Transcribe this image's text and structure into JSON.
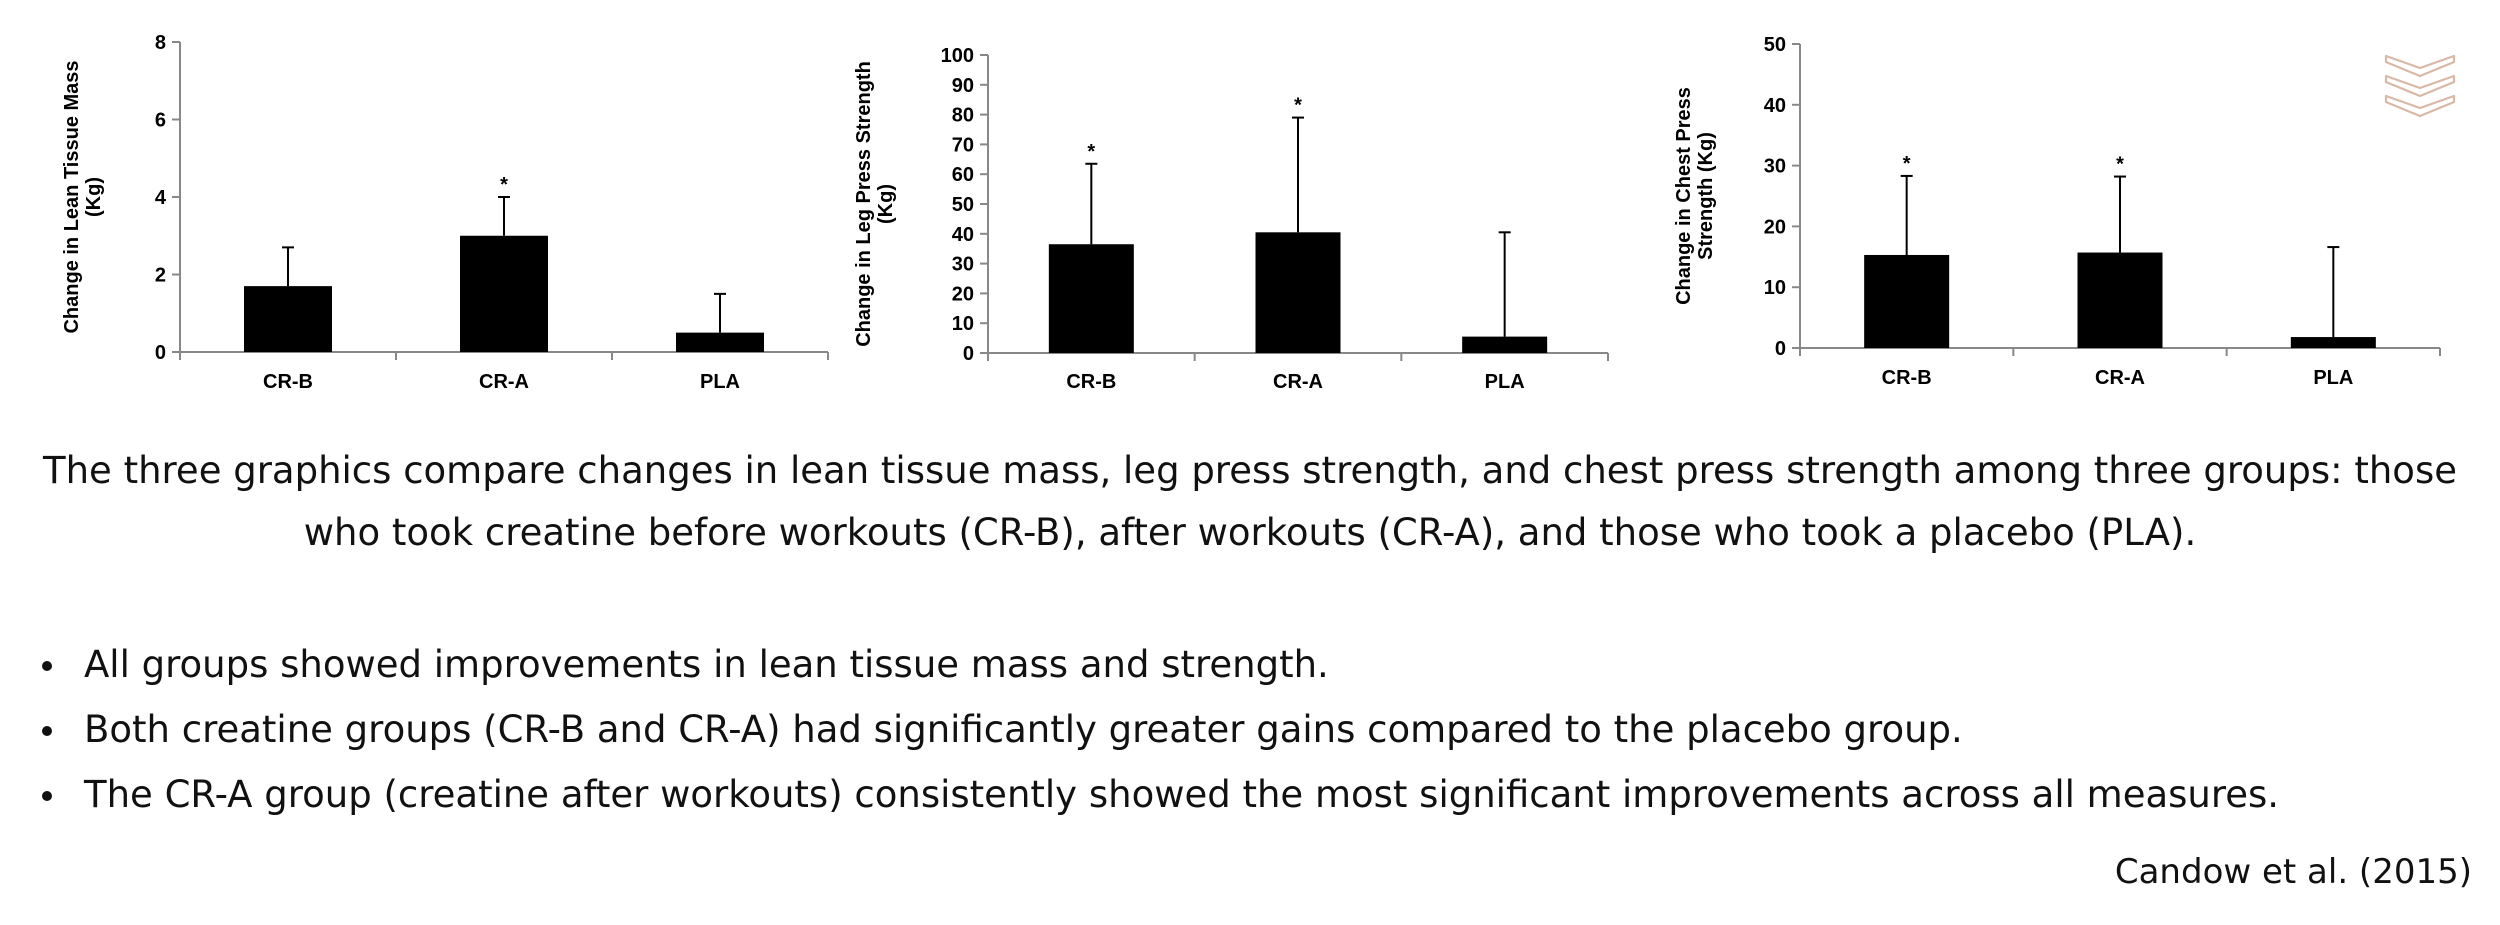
{
  "chart_data": [
    {
      "type": "bar",
      "ylabel": [
        "Change in Lean Tissue Mass",
        "(Kg)"
      ],
      "categories": [
        "CR-B",
        "CR-A",
        "PLA"
      ],
      "values": [
        1.7,
        3.0,
        0.5
      ],
      "error_upper": [
        2.7,
        4.0,
        1.5
      ],
      "significance": [
        "",
        "*",
        ""
      ],
      "yticks": [
        "0",
        "2",
        "4",
        "6",
        "8"
      ],
      "ylim": [
        0,
        8
      ],
      "grid": false,
      "bar_color": "#000000"
    },
    {
      "type": "bar",
      "ylabel": [
        "Change in Leg Press Strength",
        "(Kg)"
      ],
      "categories": [
        "CR-B",
        "CR-A",
        "PLA"
      ],
      "values": [
        36.5,
        40.5,
        5.5
      ],
      "error_upper": [
        63.5,
        79,
        40.5
      ],
      "significance": [
        "*",
        "*",
        ""
      ],
      "yticks": [
        "0",
        "10",
        "20",
        "30",
        "40",
        "50",
        "60",
        "70",
        "80",
        "90",
        "100"
      ],
      "ylim": [
        0,
        100
      ],
      "grid": false,
      "bar_color": "#000000"
    },
    {
      "type": "bar",
      "ylabel": [
        "Change in Chest Press",
        "Strength (Kg)"
      ],
      "categories": [
        "CR-B",
        "CR-A",
        "PLA"
      ],
      "values": [
        15.3,
        15.7,
        1.8
      ],
      "error_upper": [
        28.3,
        28.2,
        16.6
      ],
      "significance": [
        "*",
        "*",
        ""
      ],
      "yticks": [
        "0",
        "10",
        "20",
        "30",
        "40",
        "50"
      ],
      "ylim": [
        0,
        50
      ],
      "grid": false,
      "bar_color": "#000000"
    }
  ],
  "caption": {
    "line1": "The three graphics compare changes in lean tissue mass, leg press strength, and chest press strength among three groups: those",
    "line2": "who took creatine before workouts (CR-B), after workouts (CR-A), and those who took a placebo (PLA)."
  },
  "bullets": [
    "All groups showed improvements in lean tissue mass and strength.",
    "Both creatine groups (CR-B and CR-A) had significantly greater gains compared to the placebo group.",
    "The CR-A group (creatine after workouts) consistently showed the most significant improvements across all measures."
  ],
  "citation": "Candow et al. (2015)",
  "logo": {
    "icon": "chevron-stack-logo-icon",
    "color": "#d9b8a6"
  }
}
